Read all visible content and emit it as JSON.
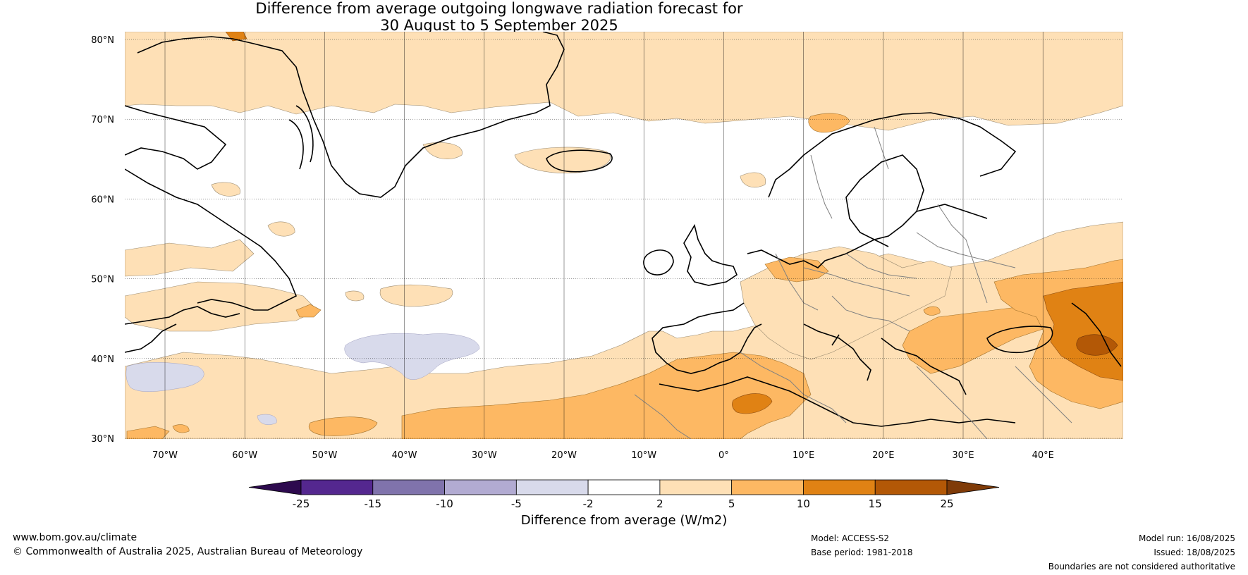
{
  "title": {
    "line1": "Difference from average outgoing longwave radiation forecast for",
    "line2": "30 August to 5 September 2025"
  },
  "map": {
    "lat_labels": [
      "80°N",
      "70°N",
      "60°N",
      "50°N",
      "40°N",
      "30°N"
    ],
    "lon_labels": [
      "70°W",
      "60°W",
      "50°W",
      "40°W",
      "30°W",
      "20°W",
      "10°W",
      "0°",
      "10°E",
      "20°E",
      "30°E",
      "40°E"
    ]
  },
  "colorbar": {
    "ticks": [
      "-25",
      "-15",
      "-10",
      "-5",
      "-2",
      "2",
      "5",
      "10",
      "15",
      "25"
    ],
    "colors": [
      "#2d0a4e",
      "#54278f",
      "#8073ac",
      "#b2abd2",
      "#d8daeb",
      "#ffffff",
      "#fee0b6",
      "#fdb863",
      "#e08214",
      "#b35806",
      "#7f3b08"
    ],
    "label": "Difference from average (W/m2)"
  },
  "footer": {
    "website": "www.bom.gov.au/climate",
    "copyright": "© Commonwealth of Australia 2025, Australian Bureau of Meteorology",
    "model": "Model: ACCESS-S2",
    "base_period": "Base period: 1981-2018",
    "model_run": "Model run: 16/08/2025",
    "issued": "Issued: 18/08/2025",
    "disclaimer": "Boundaries are not considered authoritative"
  }
}
